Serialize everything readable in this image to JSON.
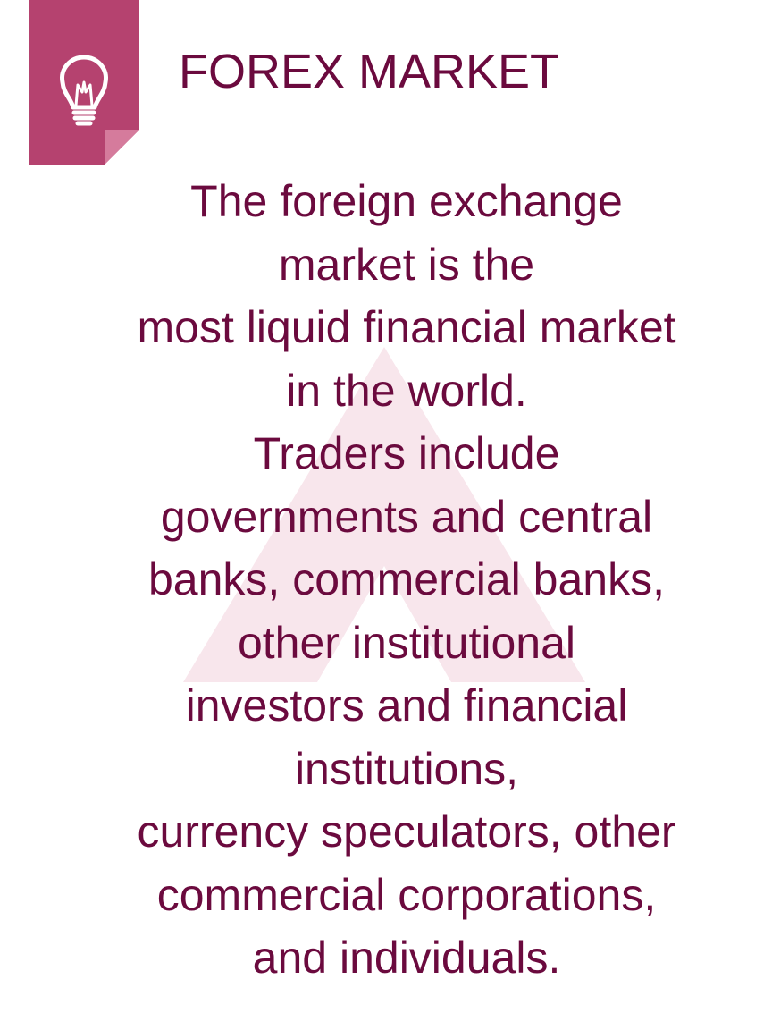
{
  "header": {
    "icon": "lightbulb-icon",
    "title": "FOREX MARKET"
  },
  "watermark": {
    "icon": "triangle-logo-watermark"
  },
  "body": {
    "lines": [
      "The foreign exchange",
      "market is the",
      "most liquid financial market",
      "in the world.",
      "Traders include",
      "governments and central",
      "banks, commercial banks,",
      "other institutional",
      "investors and financial",
      "institutions,",
      "currency speculators, other",
      "commercial corporations,",
      "and individuals."
    ]
  },
  "colors": {
    "text": "#6b0a3e",
    "badge": "#b5426f",
    "badge_fold": "#d57b9c",
    "watermark": "#f8e6ec"
  }
}
